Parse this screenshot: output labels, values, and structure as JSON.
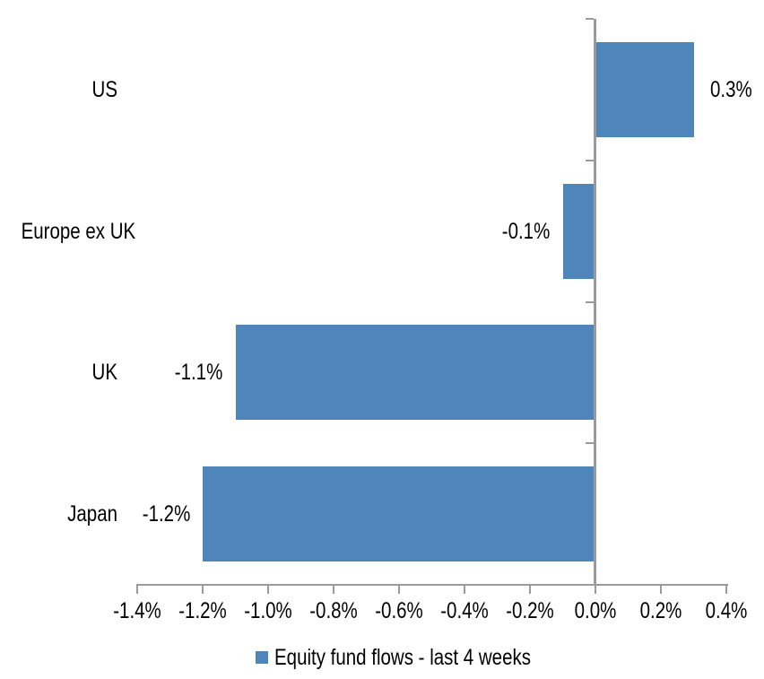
{
  "chart_data": {
    "type": "bar",
    "orientation": "horizontal",
    "categories": [
      "US",
      "Europe ex UK",
      "UK",
      "Japan"
    ],
    "values": [
      0.3,
      -0.1,
      -1.1,
      -1.2
    ],
    "data_labels": [
      "0.3%",
      "-0.1%",
      "-1.1%",
      "-1.2%"
    ],
    "legend_label": "Equity fund flows - last 4 weeks",
    "legend_position": "bottom",
    "xlim": [
      -1.4,
      0.4
    ],
    "x_ticks": [
      -1.4,
      -1.2,
      -1.0,
      -0.8,
      -0.6,
      -0.4,
      -0.2,
      0.0,
      0.2,
      0.4
    ],
    "x_tick_labels": [
      "-1.4%",
      "-1.2%",
      "-1.0%",
      "-0.8%",
      "-0.6%",
      "-0.4%",
      "-0.2%",
      "0.0%",
      "0.2%",
      "0.4%"
    ],
    "grid": false,
    "colors": {
      "bar": "#4E86BC",
      "axis": "#9B9B9B",
      "text": "#000000",
      "background": "#FFFFFF"
    }
  }
}
